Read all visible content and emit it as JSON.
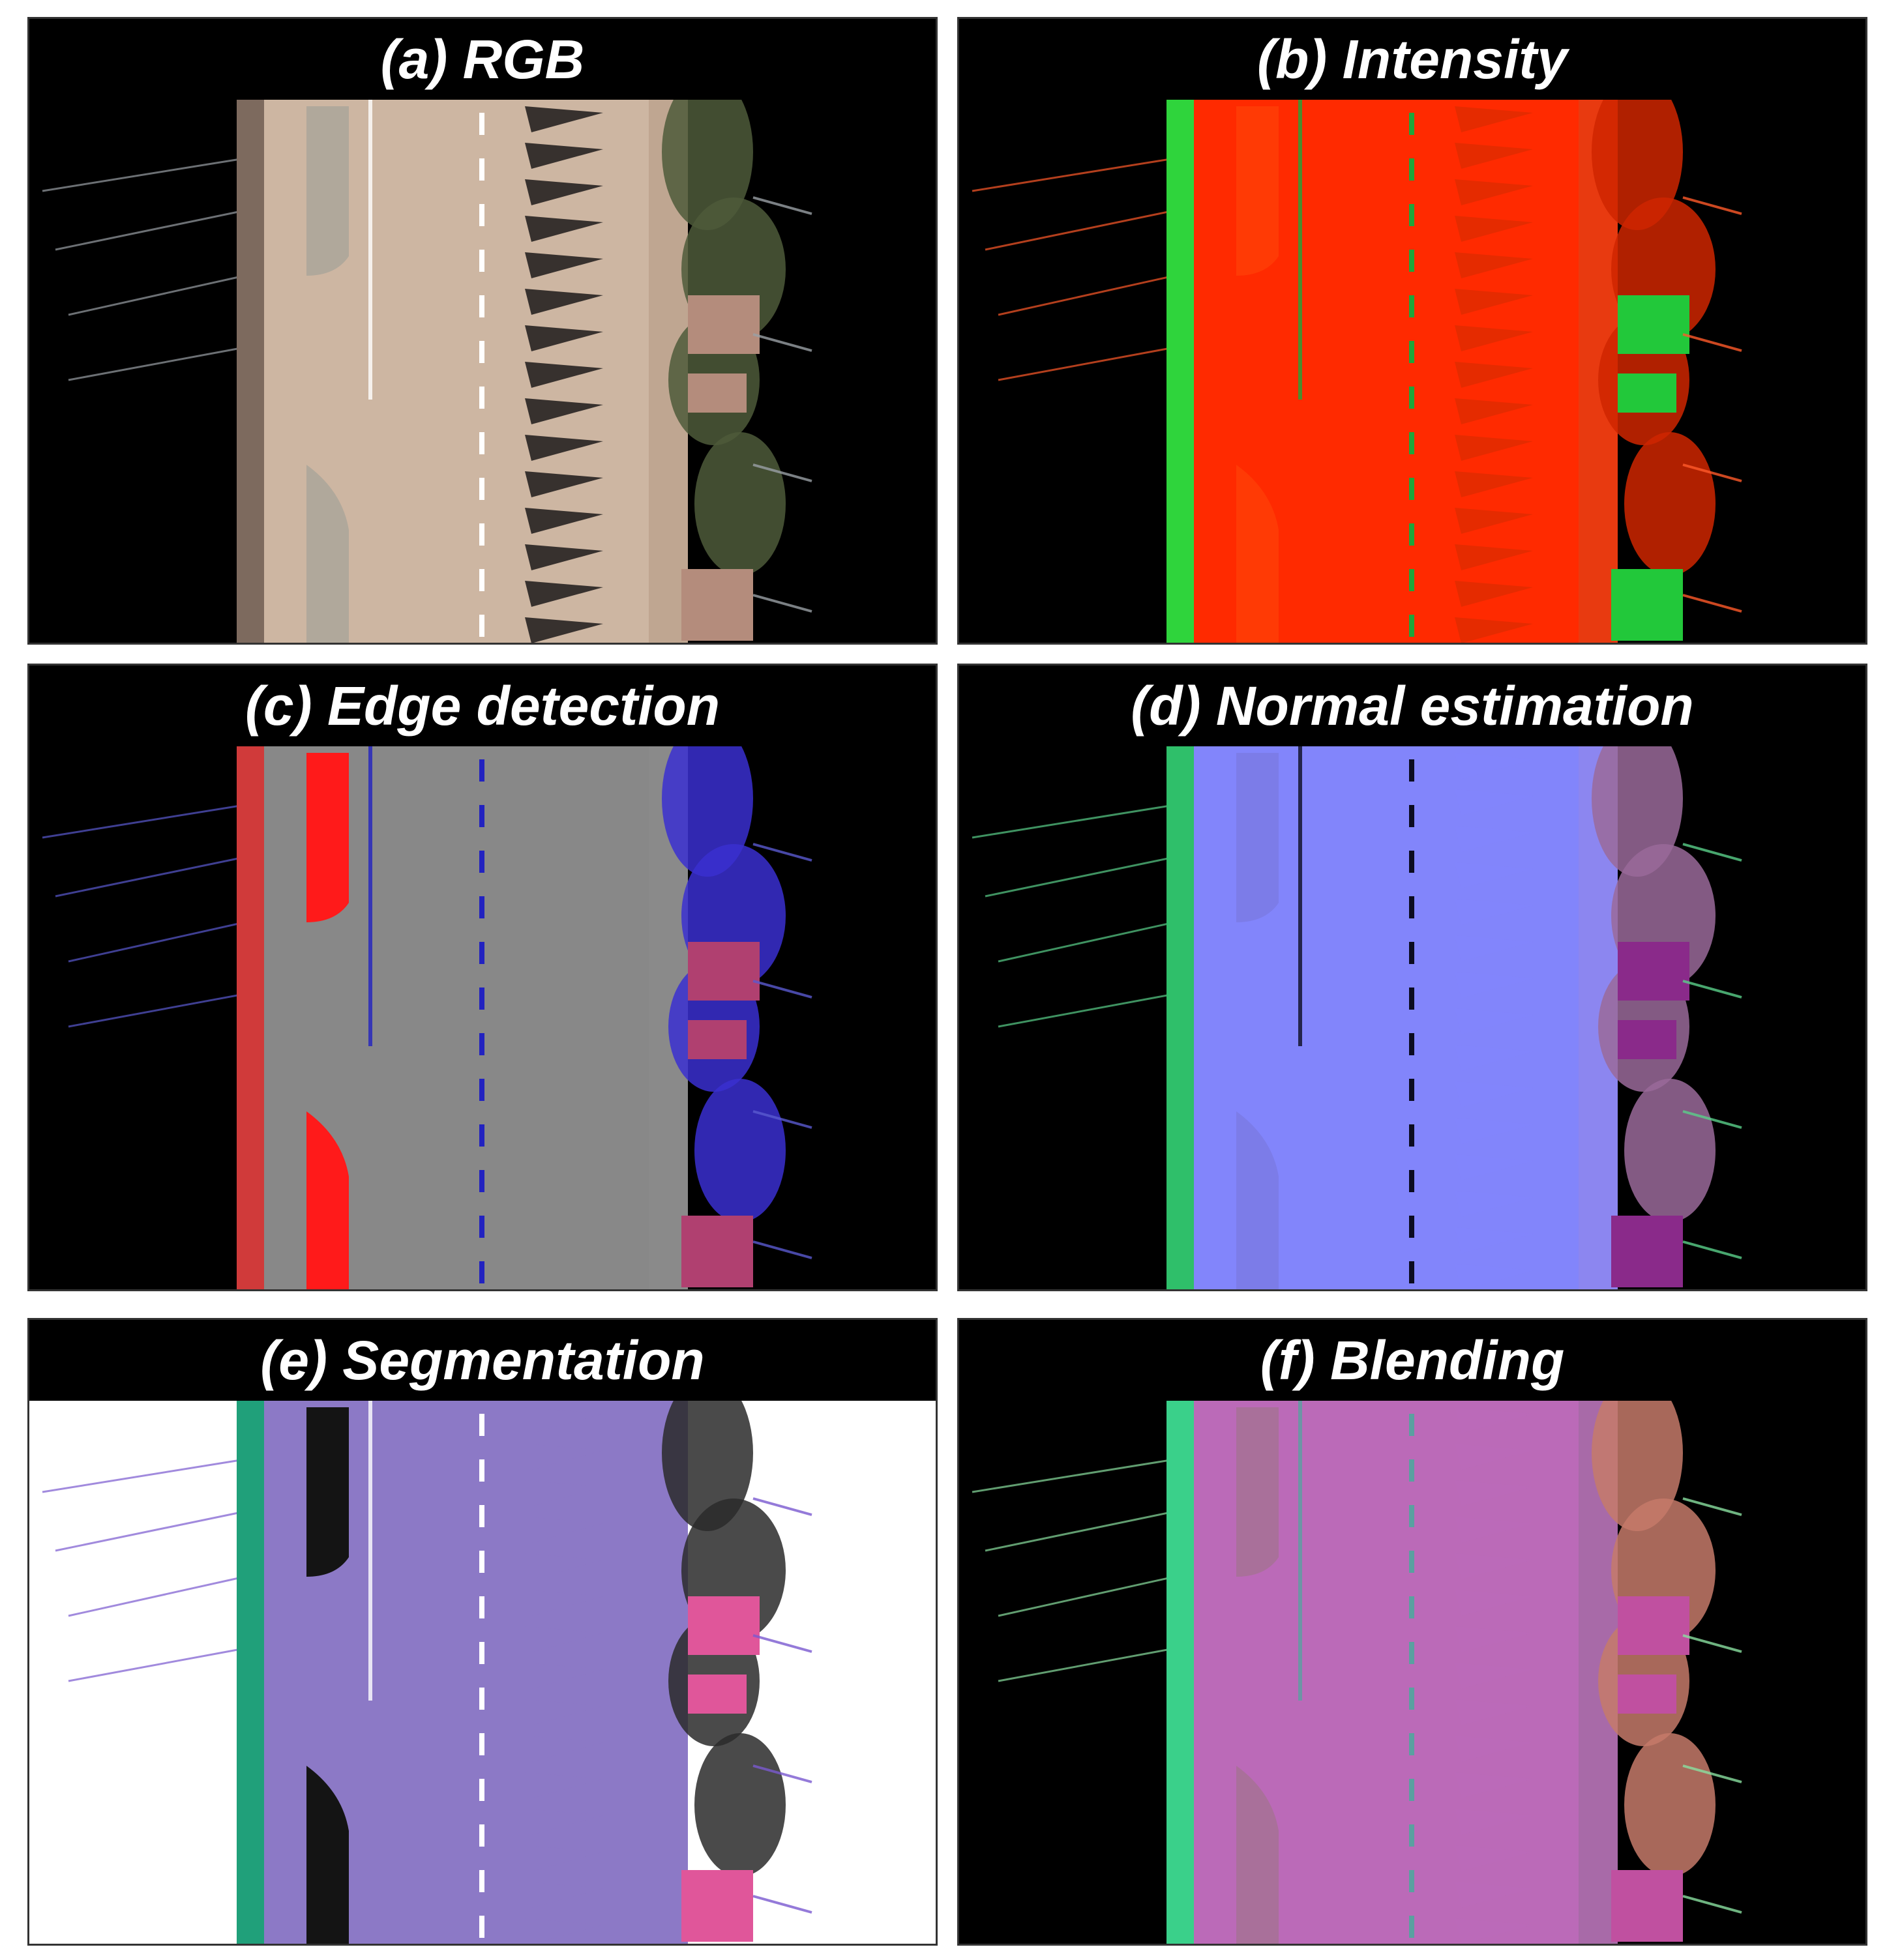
{
  "panels": [
    {
      "id": "a",
      "title": "(a) RGB",
      "bg": "#000000",
      "road": "#cdb6a2",
      "ped": "#bfa691",
      "median": "#b0a89b",
      "line": "#ffffff",
      "shadow": "#1c1a1a",
      "veg": "#4e5a3a",
      "bldg": "#b48c7c",
      "side": "#7d6a5e",
      "pole": "#9aa0a6"
    },
    {
      "id": "b",
      "title": "(b) Intensity",
      "bg": "#000000",
      "road": "#ff2a00",
      "ped": "#e83a10",
      "median": "#ff3a05",
      "line": "#1ea63a",
      "shadow": "#e02b00",
      "veg": "#cf2600",
      "bldg": "#22c83a",
      "side": "#2fd43c",
      "pole": "#ff5a2a"
    },
    {
      "id": "c",
      "title": "(c) Edge detection",
      "bg": "#000000",
      "road": "#888888",
      "ped": "#8a8a8a",
      "median": "#ff1a1a",
      "line": "#2222c0",
      "shadow": "#888888",
      "veg": "#3a2fd0",
      "bldg": "#b04070",
      "side": "#d03a3a",
      "pole": "#5a5ad0"
    },
    {
      "id": "d",
      "title": "(d) Normal estimation",
      "bg": "#000000",
      "road": "#8285fb",
      "ped": "#8c86f0",
      "median": "#7c7ce8",
      "line": "#0c0c20",
      "shadow": "#8285fb",
      "veg": "#9a6a9a",
      "bldg": "#8a2a8a",
      "side": "#2fbf6a",
      "pole": "#5ad08a"
    },
    {
      "id": "e",
      "title": "(e) Segmentation",
      "bg": "#ffffff",
      "road": "#8c79c6",
      "ped": "#8c79c6",
      "median": "#141414",
      "line": "#ffffff",
      "shadow": "#8c79c6",
      "veg": "#2a2a2a",
      "bldg": "#e0569a",
      "side": "#20a07a",
      "pole": "#7a5ad0"
    },
    {
      "id": "f",
      "title": "(f) Blending",
      "bg": "#000000",
      "road": "#bb6ab8",
      "ped": "#a86aa8",
      "median": "#a9709a",
      "line": "#5aa0a0",
      "shadow": "#bb6ab8",
      "veg": "#c67a6a",
      "bldg": "#c050a0",
      "side": "#3ad08a",
      "pole": "#8ae0a0"
    }
  ]
}
